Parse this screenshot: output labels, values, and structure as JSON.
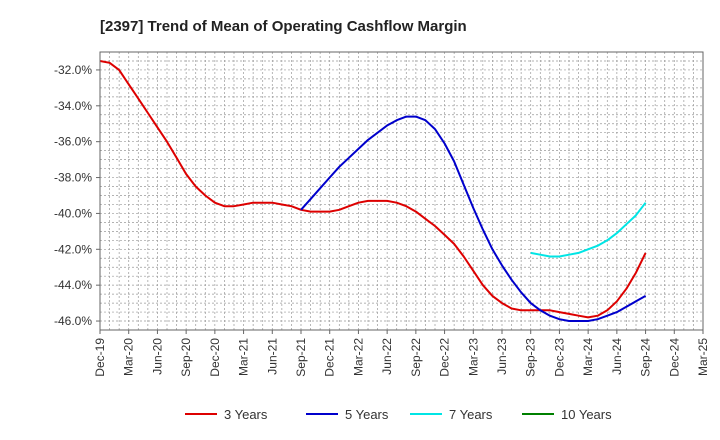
{
  "chart_data": {
    "type": "line",
    "title": "[2397]  Trend of Mean of Operating Cashflow Margin",
    "xlabel": "",
    "ylabel": "",
    "x_ticks": [
      "Dec-19",
      "Mar-20",
      "Jun-20",
      "Sep-20",
      "Dec-20",
      "Mar-21",
      "Jun-21",
      "Sep-21",
      "Dec-21",
      "Mar-22",
      "Jun-22",
      "Sep-22",
      "Dec-22",
      "Mar-23",
      "Jun-23",
      "Sep-23",
      "Dec-23",
      "Mar-24",
      "Jun-24",
      "Sep-24",
      "Dec-24",
      "Mar-25"
    ],
    "y_ticks": [
      "-32.0%",
      "-34.0%",
      "-36.0%",
      "-38.0%",
      "-40.0%",
      "-42.0%",
      "-44.0%",
      "-46.0%"
    ],
    "y_tick_values": [
      -32,
      -34,
      -36,
      -38,
      -40,
      -42,
      -44,
      -46
    ],
    "ylim": [
      -46.5,
      -31.0
    ],
    "grid": true,
    "legend_position": "bottom",
    "series": [
      {
        "name": "3 Years",
        "color": "#dd0000",
        "x": [
          "Dec-19",
          "Jan-20",
          "Feb-20",
          "Mar-20",
          "Apr-20",
          "May-20",
          "Jun-20",
          "Jul-20",
          "Aug-20",
          "Sep-20",
          "Oct-20",
          "Nov-20",
          "Dec-20",
          "Jan-21",
          "Feb-21",
          "Mar-21",
          "Apr-21",
          "May-21",
          "Jun-21",
          "Jul-21",
          "Aug-21",
          "Sep-21",
          "Oct-21",
          "Nov-21",
          "Dec-21",
          "Jan-22",
          "Feb-22",
          "Mar-22",
          "Apr-22",
          "May-22",
          "Jun-22",
          "Jul-22",
          "Aug-22",
          "Sep-22",
          "Oct-22",
          "Nov-22",
          "Dec-22",
          "Jan-23",
          "Feb-23",
          "Mar-23",
          "Apr-23",
          "May-23",
          "Jun-23",
          "Jul-23",
          "Aug-23",
          "Sep-23",
          "Oct-23",
          "Nov-23",
          "Dec-23",
          "Jan-24",
          "Feb-24",
          "Mar-24",
          "Apr-24",
          "May-24",
          "Jun-24",
          "Jul-24",
          "Aug-24",
          "Sep-24"
        ],
        "values": [
          -31.5,
          -31.6,
          -32.0,
          -32.8,
          -33.6,
          -34.4,
          -35.2,
          -36.0,
          -36.9,
          -37.8,
          -38.5,
          -39.0,
          -39.4,
          -39.6,
          -39.6,
          -39.5,
          -39.4,
          -39.4,
          -39.4,
          -39.5,
          -39.6,
          -39.8,
          -39.9,
          -39.9,
          -39.9,
          -39.8,
          -39.6,
          -39.4,
          -39.3,
          -39.3,
          -39.3,
          -39.4,
          -39.6,
          -39.9,
          -40.3,
          -40.7,
          -41.2,
          -41.7,
          -42.4,
          -43.2,
          -44.0,
          -44.6,
          -45.0,
          -45.3,
          -45.4,
          -45.4,
          -45.4,
          -45.4,
          -45.5,
          -45.6,
          -45.7,
          -45.8,
          -45.7,
          -45.4,
          -44.9,
          -44.2,
          -43.3,
          -42.2
        ]
      },
      {
        "name": "5 Years",
        "color": "#0000cc",
        "x": [
          "Sep-21",
          "Oct-21",
          "Nov-21",
          "Dec-21",
          "Jan-22",
          "Feb-22",
          "Mar-22",
          "Apr-22",
          "May-22",
          "Jun-22",
          "Jul-22",
          "Aug-22",
          "Sep-22",
          "Oct-22",
          "Nov-22",
          "Dec-22",
          "Jan-23",
          "Feb-23",
          "Mar-23",
          "Apr-23",
          "May-23",
          "Jun-23",
          "Jul-23",
          "Aug-23",
          "Sep-23",
          "Oct-23",
          "Nov-23",
          "Dec-23",
          "Jan-24",
          "Feb-24",
          "Mar-24",
          "Apr-24",
          "May-24",
          "Jun-24",
          "Jul-24",
          "Aug-24",
          "Sep-24"
        ],
        "values": [
          -39.8,
          -39.2,
          -38.6,
          -38.0,
          -37.4,
          -36.9,
          -36.4,
          -35.9,
          -35.5,
          -35.1,
          -34.8,
          -34.6,
          -34.6,
          -34.8,
          -35.3,
          -36.1,
          -37.1,
          -38.4,
          -39.7,
          -40.9,
          -42.0,
          -42.9,
          -43.7,
          -44.4,
          -45.0,
          -45.4,
          -45.7,
          -45.9,
          -46.0,
          -46.0,
          -46.0,
          -45.9,
          -45.7,
          -45.5,
          -45.2,
          -44.9,
          -44.6
        ]
      },
      {
        "name": "7 Years",
        "color": "#00e5e5",
        "x": [
          "Sep-23",
          "Oct-23",
          "Nov-23",
          "Dec-23",
          "Jan-24",
          "Feb-24",
          "Mar-24",
          "Apr-24",
          "May-24",
          "Jun-24",
          "Jul-24",
          "Aug-24",
          "Sep-24"
        ],
        "values": [
          -42.2,
          -42.3,
          -42.4,
          -42.4,
          -42.3,
          -42.2,
          -42.0,
          -41.8,
          -41.5,
          -41.1,
          -40.6,
          -40.1,
          -39.4
        ]
      },
      {
        "name": "10 Years",
        "color": "#008000",
        "x": [],
        "values": []
      }
    ]
  }
}
